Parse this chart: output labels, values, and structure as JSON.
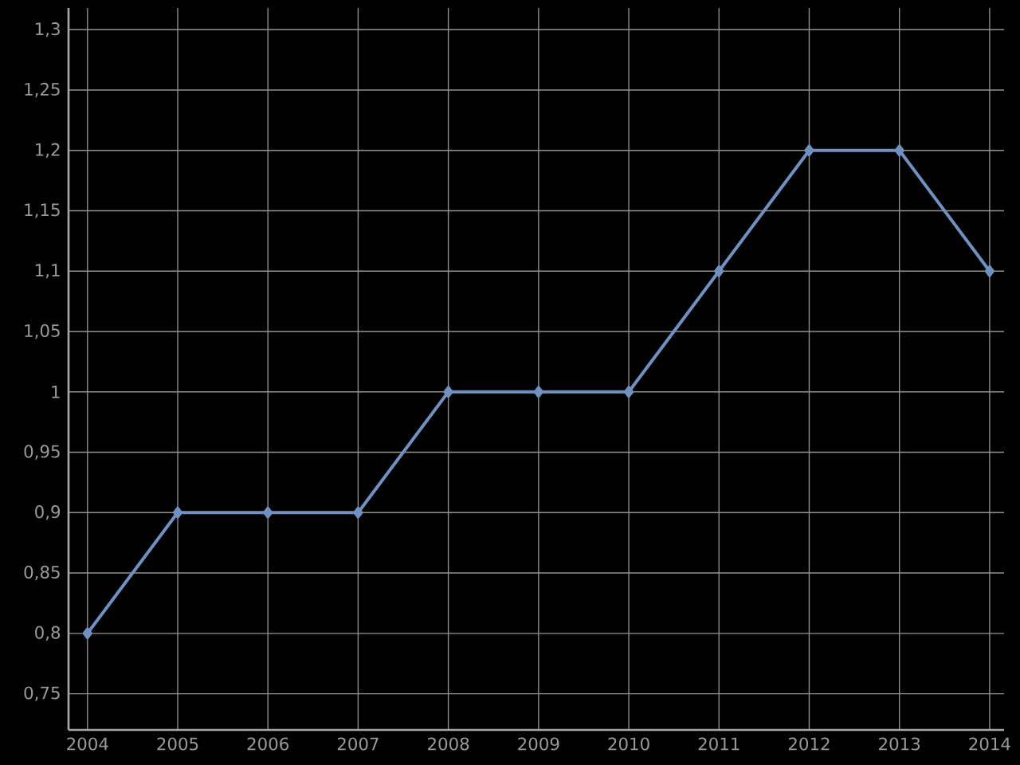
{
  "chart_data": {
    "type": "line",
    "x": [
      2004,
      2005,
      2006,
      2007,
      2008,
      2009,
      2010,
      2011,
      2012,
      2013,
      2014
    ],
    "values": [
      0.8,
      0.9,
      0.9,
      0.9,
      1.0,
      1.0,
      1.0,
      1.1,
      1.2,
      1.2,
      1.1
    ],
    "color": "#7090c0",
    "xlim": [
      2003.79,
      2014.16
    ],
    "ylim": [
      0.72,
      1.318
    ],
    "xticks": [
      2004,
      2005,
      2006,
      2007,
      2008,
      2009,
      2010,
      2011,
      2012,
      2013,
      2014
    ],
    "yticks": [
      {
        "value": 0.75,
        "label": "0,75"
      },
      {
        "value": 0.8,
        "label": "0,8"
      },
      {
        "value": 0.85,
        "label": "0,85"
      },
      {
        "value": 0.9,
        "label": "0,9"
      },
      {
        "value": 0.95,
        "label": "0,95"
      },
      {
        "value": 1,
        "label": "1"
      },
      {
        "value": 1.05,
        "label": "1,05"
      },
      {
        "value": 1.1,
        "label": "1,1"
      },
      {
        "value": 1.15,
        "label": "1,15"
      },
      {
        "value": 1.2,
        "label": "1,2"
      },
      {
        "value": 1.25,
        "label": "1,25"
      },
      {
        "value": 1.3,
        "label": "1,3"
      }
    ],
    "grid": true,
    "marker": "diamond",
    "line_style": "solid"
  }
}
